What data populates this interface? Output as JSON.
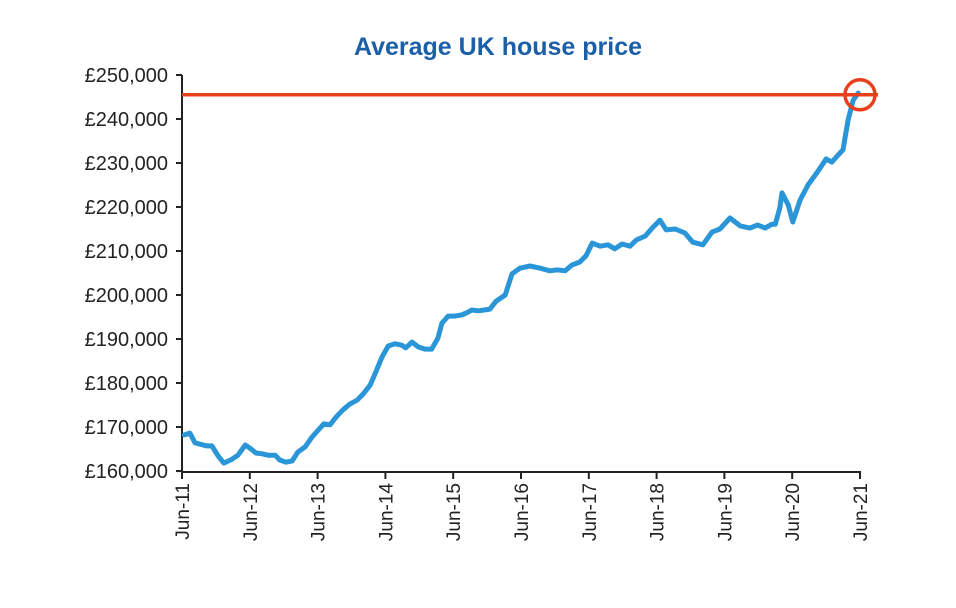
{
  "chart_data": {
    "type": "line",
    "title": "Average UK house price",
    "xlabel": "",
    "ylabel": "",
    "ylim": [
      160000,
      250000
    ],
    "xlim_months_since_jun_11": [
      0,
      120
    ],
    "grid": false,
    "y_ticks": [
      {
        "value": 160000,
        "label": "£160,000"
      },
      {
        "value": 170000,
        "label": "£170,000"
      },
      {
        "value": 180000,
        "label": "£180,000"
      },
      {
        "value": 190000,
        "label": "£190,000"
      },
      {
        "value": 200000,
        "label": "£200,000"
      },
      {
        "value": 210000,
        "label": "£210,000"
      },
      {
        "value": 220000,
        "label": "£220,000"
      },
      {
        "value": 230000,
        "label": "£230,000"
      },
      {
        "value": 240000,
        "label": "£240,000"
      },
      {
        "value": 250000,
        "label": "£250,000"
      }
    ],
    "x_ticks": [
      {
        "month": 0,
        "label": "Jun-11"
      },
      {
        "month": 12,
        "label": "Jun-12"
      },
      {
        "month": 24,
        "label": "Jun-13"
      },
      {
        "month": 36,
        "label": "Jun-14"
      },
      {
        "month": 48,
        "label": "Jun-15"
      },
      {
        "month": 60,
        "label": "Jun-16"
      },
      {
        "month": 72,
        "label": "Jun-17"
      },
      {
        "month": 84,
        "label": "Jun-18"
      },
      {
        "month": 96,
        "label": "Jun-19"
      },
      {
        "month": 108,
        "label": "Jun-20"
      },
      {
        "month": 120,
        "label": "Jun-21"
      }
    ],
    "series": [
      {
        "name": "Average UK house price",
        "color": "#2a96d8",
        "points": [
          [
            0.4,
            168200
          ],
          [
            1.4,
            168600
          ],
          [
            2.3,
            166400
          ],
          [
            3.2,
            166100
          ],
          [
            4.4,
            165700
          ],
          [
            5.3,
            165700
          ],
          [
            6.4,
            163400
          ],
          [
            7.4,
            161800
          ],
          [
            8.9,
            162700
          ],
          [
            9.9,
            163600
          ],
          [
            11.2,
            165900
          ],
          [
            12.0,
            165200
          ],
          [
            13.1,
            164100
          ],
          [
            14.2,
            163900
          ],
          [
            15.2,
            163600
          ],
          [
            16.5,
            163600
          ],
          [
            17.3,
            162500
          ],
          [
            18.4,
            162000
          ],
          [
            19.5,
            162300
          ],
          [
            20.5,
            164300
          ],
          [
            21.8,
            165500
          ],
          [
            23.0,
            167700
          ],
          [
            24.1,
            169300
          ],
          [
            25.1,
            170700
          ],
          [
            26.2,
            170500
          ],
          [
            27.3,
            172300
          ],
          [
            28.5,
            173900
          ],
          [
            29.7,
            175200
          ],
          [
            31.0,
            176100
          ],
          [
            32.2,
            177700
          ],
          [
            33.3,
            179500
          ],
          [
            34.3,
            182500
          ],
          [
            35.4,
            185900
          ],
          [
            36.5,
            188400
          ],
          [
            37.7,
            188900
          ],
          [
            38.9,
            188600
          ],
          [
            39.6,
            188000
          ],
          [
            40.7,
            189300
          ],
          [
            41.8,
            188200
          ],
          [
            43.0,
            187700
          ],
          [
            44.2,
            187700
          ],
          [
            45.3,
            190200
          ],
          [
            46.0,
            193600
          ],
          [
            47.1,
            195200
          ],
          [
            48.3,
            195200
          ],
          [
            49.6,
            195500
          ],
          [
            50.6,
            196100
          ],
          [
            51.3,
            196600
          ],
          [
            52.4,
            196400
          ],
          [
            53.5,
            196600
          ],
          [
            54.5,
            196800
          ],
          [
            55.6,
            198600
          ],
          [
            57.2,
            200000
          ],
          [
            58.4,
            204800
          ],
          [
            59.8,
            206100
          ],
          [
            61.6,
            206600
          ],
          [
            63.4,
            206100
          ],
          [
            65.1,
            205500
          ],
          [
            66.4,
            205700
          ],
          [
            67.8,
            205500
          ],
          [
            69.0,
            206800
          ],
          [
            70.4,
            207500
          ],
          [
            71.5,
            208900
          ],
          [
            72.6,
            211800
          ],
          [
            74.0,
            211100
          ],
          [
            75.4,
            211400
          ],
          [
            76.6,
            210500
          ],
          [
            77.9,
            211600
          ],
          [
            79.3,
            211100
          ],
          [
            80.4,
            212500
          ],
          [
            82.0,
            213400
          ],
          [
            83.2,
            215200
          ],
          [
            84.6,
            217000
          ],
          [
            85.7,
            214800
          ],
          [
            87.3,
            215000
          ],
          [
            89.0,
            214100
          ],
          [
            90.4,
            212000
          ],
          [
            92.2,
            211400
          ],
          [
            93.8,
            214300
          ],
          [
            95.2,
            215000
          ],
          [
            97.0,
            217500
          ],
          [
            98.8,
            215700
          ],
          [
            100.5,
            215200
          ],
          [
            101.9,
            215900
          ],
          [
            103.2,
            215200
          ],
          [
            104.4,
            216100
          ],
          [
            105.0,
            216100
          ],
          [
            105.8,
            219800
          ],
          [
            106.2,
            223200
          ],
          [
            107.3,
            220500
          ],
          [
            108.1,
            216600
          ],
          [
            109.4,
            221600
          ],
          [
            110.8,
            225000
          ],
          [
            112.6,
            228200
          ],
          [
            114.0,
            230900
          ],
          [
            115.0,
            230200
          ],
          [
            116.1,
            231800
          ],
          [
            117.0,
            233000
          ],
          [
            117.9,
            239800
          ],
          [
            118.8,
            244300
          ],
          [
            119.7,
            245900
          ]
        ]
      }
    ],
    "annotations": [
      {
        "type": "horizontal-line",
        "value": 245500,
        "color": "#e8401c"
      },
      {
        "type": "circle-highlight",
        "month": 120,
        "value": 245500,
        "color": "#e8401c"
      }
    ]
  }
}
